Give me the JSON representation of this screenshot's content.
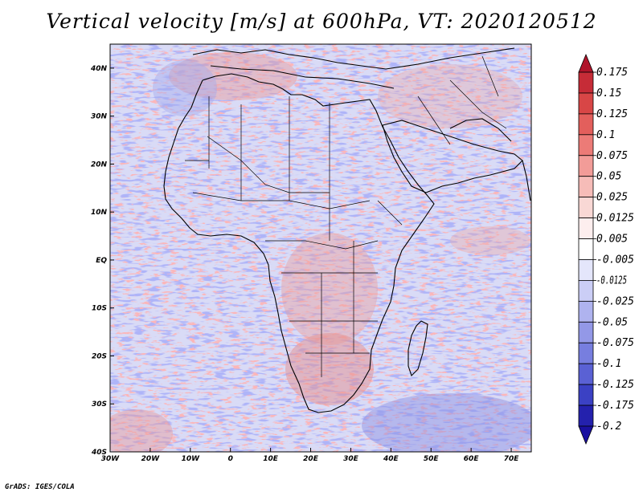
{
  "title": "Vertical velocity [m/s] at 600hPa, VT: 2020120512",
  "footer": "GrADS: IGES/COLA",
  "map": {
    "lon_range": [
      -30,
      75
    ],
    "lat_range": [
      -40,
      45
    ],
    "x_ticks": [
      "30W",
      "20W",
      "10W",
      "0",
      "10E",
      "20E",
      "30E",
      "40E",
      "50E",
      "60E",
      "70E"
    ],
    "x_tick_values": [
      -30,
      -20,
      -10,
      0,
      10,
      20,
      30,
      40,
      50,
      60,
      70
    ],
    "y_ticks": [
      "40N",
      "30N",
      "20N",
      "10N",
      "EQ",
      "10S",
      "20S",
      "30S",
      "40S"
    ],
    "y_tick_values": [
      40,
      30,
      20,
      10,
      0,
      -10,
      -20,
      -30,
      -40
    ]
  },
  "colorbar": {
    "levels": [
      "0.175",
      "0.15",
      "0.125",
      "0.1",
      "0.075",
      "0.05",
      "0.025",
      "0.0125",
      "0.005",
      "-0.005",
      "-0.0125",
      "-0.025",
      "-0.05",
      "-0.075",
      "-0.1",
      "-0.125",
      "-0.175",
      "-0.2"
    ],
    "colors": [
      "#b0142a",
      "#c62c37",
      "#d84646",
      "#e35f5c",
      "#ec7b77",
      "#f29c98",
      "#f6bcb8",
      "#f9d8d5",
      "#fdeeee",
      "#ffffff",
      "#e4e6fb",
      "#cbcef6",
      "#afb3ef",
      "#9398e7",
      "#777edf",
      "#5a61d4",
      "#3b41c4",
      "#2421ad",
      "#1a10a0"
    ]
  }
}
